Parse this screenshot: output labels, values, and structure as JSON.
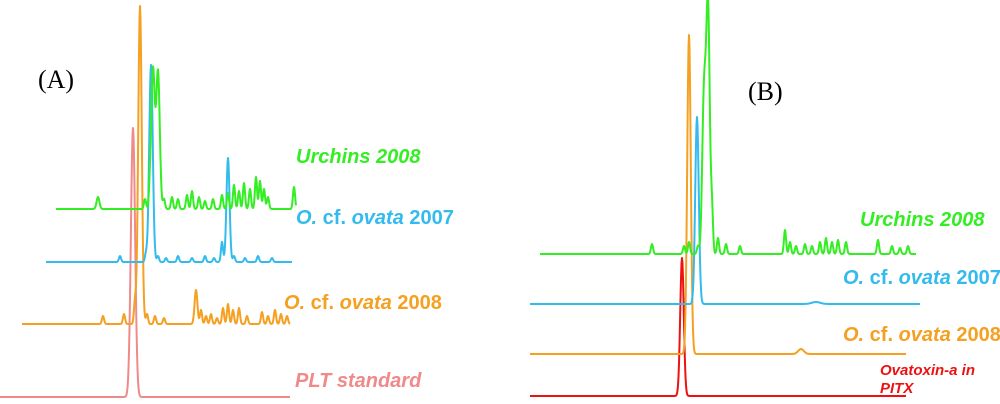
{
  "chart_data": [
    {
      "type": "line",
      "panel_label": "(A)",
      "xlabel": "",
      "ylabel": "",
      "series": [
        {
          "name": "Urchins 2008",
          "color": "#33ee22",
          "name_parts": [
            {
              "text": "Urchins 2008",
              "italic": true
            }
          ]
        },
        {
          "name": "O. cf. ovata 2007",
          "color": "#33bbee",
          "name_parts": [
            {
              "text": "O.",
              "italic": true
            },
            {
              "text": " cf. ",
              "italic": false
            },
            {
              "text": "ovata",
              "italic": true
            },
            {
              "text": " 2007",
              "italic": false
            }
          ]
        },
        {
          "name": "O. cf. ovata 2008",
          "color": "#f5a020",
          "name_parts": [
            {
              "text": "O.",
              "italic": true
            },
            {
              "text": " cf. ",
              "italic": false
            },
            {
              "text": "ovata",
              "italic": true
            },
            {
              "text": " 2008",
              "italic": false
            }
          ]
        },
        {
          "name": "PLT standard",
          "color": "#f08a8a",
          "name_parts": [
            {
              "text": "PLT standard",
              "italic": true
            }
          ]
        }
      ]
    },
    {
      "type": "line",
      "panel_label": "(B)",
      "xlabel": "",
      "ylabel": "",
      "series": [
        {
          "name": "Urchins 2008",
          "color": "#33ee22",
          "name_parts": [
            {
              "text": "Urchins 2008",
              "italic": true
            }
          ]
        },
        {
          "name": "O. cf. ovata 2007",
          "color": "#33bbee",
          "name_parts": [
            {
              "text": "O.",
              "italic": true
            },
            {
              "text": " cf. ",
              "italic": false
            },
            {
              "text": "ovata",
              "italic": true
            },
            {
              "text": " 2007",
              "italic": false
            }
          ]
        },
        {
          "name": "O. cf. ovata 2008",
          "color": "#f5a020",
          "name_parts": [
            {
              "text": "O.",
              "italic": true
            },
            {
              "text": " cf. ",
              "italic": false
            },
            {
              "text": "ovata",
              "italic": true
            },
            {
              "text": " 2008",
              "italic": false
            }
          ]
        },
        {
          "name": "Ovatoxin-a in PITX",
          "color": "#ee1111",
          "name_parts": [
            {
              "text": "Ovatoxin-a in PITX",
              "italic": true
            }
          ]
        }
      ]
    }
  ]
}
